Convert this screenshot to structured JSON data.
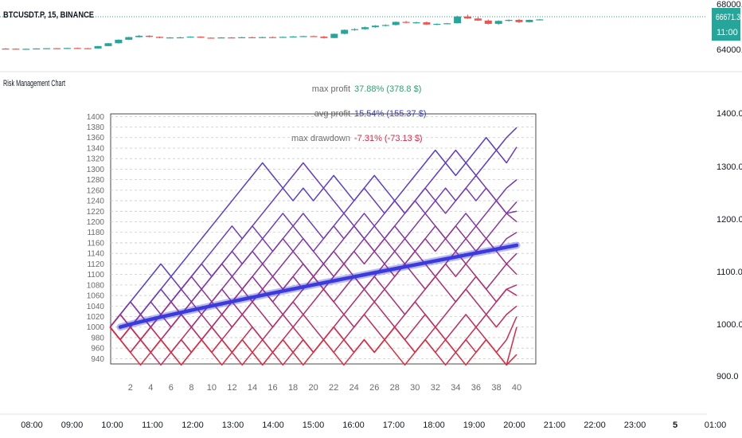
{
  "header": {
    "symbol": "BTCUSDT.P, 15, BINANCE"
  },
  "price_pane": {
    "scale_labels": [
      "68000.0",
      "64000.0"
    ],
    "current_price": "66671.3",
    "countdown": "11:00",
    "accent_up": "#26a69a",
    "accent_down": "#ef5350",
    "candles": [
      [
        64070,
        64110,
        64030,
        64060
      ],
      [
        64060,
        64090,
        64020,
        64040
      ],
      [
        64040,
        64070,
        64010,
        64050
      ],
      [
        64050,
        64090,
        64020,
        64080
      ],
      [
        64080,
        64110,
        64050,
        64100
      ],
      [
        64100,
        64120,
        64060,
        64080
      ],
      [
        64080,
        64140,
        64060,
        64120
      ],
      [
        64120,
        64160,
        64080,
        64100
      ],
      [
        64100,
        64130,
        64060,
        64080
      ],
      [
        64080,
        64310,
        64070,
        64290
      ],
      [
        64290,
        64560,
        64270,
        64540
      ],
      [
        64540,
        64880,
        64510,
        64850
      ],
      [
        64850,
        65110,
        64820,
        65080
      ],
      [
        65080,
        65260,
        65040,
        65200
      ],
      [
        65200,
        65240,
        65060,
        65100
      ],
      [
        65100,
        65130,
        64980,
        65010
      ],
      [
        65010,
        65080,
        64970,
        65050
      ],
      [
        65050,
        65110,
        65000,
        65060
      ],
      [
        65060,
        65150,
        65030,
        65120
      ],
      [
        65120,
        65160,
        65010,
        65030
      ],
      [
        65030,
        65060,
        64980,
        65010
      ],
      [
        65010,
        65080,
        64990,
        65050
      ],
      [
        65050,
        65090,
        64990,
        65030
      ],
      [
        65030,
        65100,
        65010,
        65070
      ],
      [
        65070,
        65110,
        65030,
        65050
      ],
      [
        65050,
        65110,
        65010,
        65080
      ],
      [
        65080,
        65140,
        65040,
        65060
      ],
      [
        65060,
        65130,
        65020,
        65100
      ],
      [
        65100,
        65170,
        65070,
        65140
      ],
      [
        65140,
        65200,
        65090,
        65170
      ],
      [
        65170,
        65220,
        65100,
        65120
      ],
      [
        65120,
        65190,
        64950,
        65000
      ],
      [
        65000,
        65400,
        64990,
        65370
      ],
      [
        65370,
        65760,
        65330,
        65720
      ],
      [
        65720,
        65860,
        65640,
        65780
      ],
      [
        65780,
        66010,
        65740,
        65950
      ],
      [
        65950,
        66140,
        65900,
        66090
      ],
      [
        66090,
        66200,
        66020,
        66150
      ],
      [
        66150,
        66460,
        66100,
        66420
      ],
      [
        66420,
        66510,
        66300,
        66350
      ],
      [
        66350,
        66440,
        66270,
        66380
      ],
      [
        66380,
        66460,
        66160,
        66190
      ],
      [
        66190,
        66290,
        66130,
        66250
      ],
      [
        66250,
        66330,
        66210,
        66300
      ],
      [
        66300,
        66960,
        66280,
        66900
      ],
      [
        66900,
        67060,
        66690,
        66720
      ],
      [
        66720,
        66870,
        66510,
        66540
      ],
      [
        66540,
        66630,
        66200,
        66250
      ],
      [
        66250,
        66560,
        66160,
        66510
      ],
      [
        66510,
        66640,
        66450,
        66600
      ],
      [
        66600,
        66680,
        66320,
        66400
      ],
      [
        66400,
        66620,
        66360,
        66600
      ],
      [
        66600,
        66680,
        66560,
        66640
      ]
    ]
  },
  "indicator": {
    "title": "Risk Management Chart",
    "stats": [
      {
        "label": "max profit",
        "value": "37.88% (378.8 $)",
        "color": "#2e9e6e"
      },
      {
        "label": "avg profit",
        "value": "15.54% (155.37 $)",
        "color": "#3b3bdc"
      },
      {
        "label": "max drawdown",
        "value": "-7.31% (-73.13 $)",
        "color": "#e0203e"
      }
    ],
    "right_scale_labels": [
      "1400.0",
      "1300.0",
      "1200.0",
      "1100.0",
      "1000.0",
      "900.0"
    ]
  },
  "chart_data": {
    "type": "line",
    "title": "",
    "xlabel": "",
    "ylabel": "",
    "x_ticks": [
      2,
      4,
      6,
      8,
      10,
      12,
      14,
      16,
      18,
      20,
      22,
      24,
      26,
      28,
      30,
      32,
      34,
      36,
      38,
      40
    ],
    "y_ticks": [
      940,
      960,
      980,
      1000,
      1020,
      1040,
      1060,
      1080,
      1100,
      1120,
      1140,
      1160,
      1180,
      1200,
      1220,
      1240,
      1260,
      1280,
      1300,
      1320,
      1340,
      1360,
      1380,
      1400
    ],
    "ylim": [
      930,
      1405
    ],
    "xlim": [
      0,
      42
    ],
    "grid": true,
    "start_value": 1000,
    "trades": 40,
    "avg_curve": {
      "x": [
        1,
        40
      ],
      "y": [
        1000,
        1155.37
      ],
      "color": "#3b3bdc"
    },
    "series": [
      {
        "values": [
          1000,
          1024,
          1048,
          1072,
          1096,
          1120,
          1096,
          1120,
          1144,
          1168,
          1192,
          1216,
          1240,
          1264,
          1288,
          1312,
          1288,
          1264,
          1240,
          1264,
          1240,
          1264,
          1288,
          1264,
          1240,
          1264,
          1288,
          1264,
          1240,
          1264,
          1288,
          1312,
          1336,
          1312,
          1288,
          1312,
          1336,
          1360,
          1336,
          1360,
          1379
        ]
      },
      {
        "values": [
          1000,
          1024,
          1048,
          1024,
          1048,
          1072,
          1096,
          1072,
          1096,
          1120,
          1144,
          1168,
          1192,
          1168,
          1192,
          1216,
          1240,
          1264,
          1288,
          1312,
          1288,
          1264,
          1240,
          1216,
          1240,
          1264,
          1240,
          1216,
          1240,
          1216,
          1240,
          1264,
          1288,
          1312,
          1336,
          1312,
          1288,
          1312,
          1336,
          1312,
          1342
        ]
      },
      {
        "values": [
          1000,
          1024,
          1000,
          1024,
          1048,
          1072,
          1048,
          1072,
          1096,
          1120,
          1096,
          1120,
          1144,
          1168,
          1192,
          1168,
          1192,
          1216,
          1192,
          1216,
          1192,
          1168,
          1192,
          1216,
          1192,
          1168,
          1192,
          1216,
          1240,
          1216,
          1240,
          1264,
          1240,
          1264,
          1240,
          1264,
          1288,
          1264,
          1240,
          1264,
          1280
        ]
      },
      {
        "values": [
          1000,
          976,
          1000,
          1024,
          1048,
          1024,
          1048,
          1072,
          1048,
          1072,
          1096,
          1120,
          1144,
          1120,
          1144,
          1168,
          1144,
          1168,
          1192,
          1168,
          1144,
          1168,
          1192,
          1168,
          1192,
          1216,
          1192,
          1168,
          1192,
          1216,
          1240,
          1216,
          1240,
          1216,
          1240,
          1264,
          1240,
          1264,
          1240,
          1216,
          1220
        ]
      },
      {
        "values": [
          1000,
          1024,
          1048,
          1024,
          1000,
          1024,
          1048,
          1072,
          1096,
          1072,
          1096,
          1120,
          1096,
          1120,
          1144,
          1120,
          1144,
          1168,
          1144,
          1168,
          1144,
          1120,
          1144,
          1168,
          1192,
          1168,
          1144,
          1168,
          1192,
          1168,
          1192,
          1216,
          1192,
          1168,
          1192,
          1216,
          1192,
          1216,
          1240,
          1216,
          1238
        ]
      },
      {
        "values": [
          1000,
          976,
          1000,
          1024,
          1000,
          1024,
          1048,
          1024,
          1048,
          1072,
          1048,
          1072,
          1096,
          1072,
          1096,
          1120,
          1096,
          1120,
          1144,
          1120,
          1096,
          1120,
          1144,
          1120,
          1144,
          1168,
          1144,
          1120,
          1144,
          1168,
          1144,
          1168,
          1192,
          1168,
          1144,
          1168,
          1192,
          1168,
          1192,
          1216,
          1200
        ]
      },
      {
        "values": [
          1000,
          1024,
          1000,
          976,
          1000,
          1024,
          1000,
          1024,
          1048,
          1024,
          1048,
          1072,
          1048,
          1072,
          1096,
          1072,
          1096,
          1072,
          1096,
          1120,
          1096,
          1120,
          1096,
          1120,
          1144,
          1120,
          1144,
          1168,
          1144,
          1120,
          1144,
          1168,
          1144,
          1168,
          1192,
          1168,
          1144,
          1168,
          1144,
          1168,
          1180
        ]
      },
      {
        "values": [
          1000,
          976,
          1000,
          976,
          1000,
          1024,
          1048,
          1024,
          1000,
          1024,
          1048,
          1024,
          1048,
          1072,
          1048,
          1072,
          1048,
          1072,
          1096,
          1072,
          1096,
          1072,
          1096,
          1120,
          1096,
          1072,
          1096,
          1120,
          1096,
          1120,
          1144,
          1120,
          1096,
          1120,
          1144,
          1120,
          1144,
          1168,
          1144,
          1120,
          1140
        ]
      },
      {
        "values": [
          1000,
          1024,
          1000,
          976,
          952,
          976,
          1000,
          1024,
          1000,
          1024,
          1000,
          1024,
          1048,
          1024,
          1048,
          1072,
          1048,
          1024,
          1048,
          1072,
          1096,
          1072,
          1048,
          1072,
          1096,
          1072,
          1096,
          1072,
          1096,
          1120,
          1096,
          1072,
          1096,
          1120,
          1096,
          1120,
          1096,
          1072,
          1096,
          1120,
          1100
        ]
      },
      {
        "values": [
          1000,
          976,
          952,
          976,
          1000,
          976,
          1000,
          1024,
          1000,
          976,
          1000,
          1024,
          1000,
          1024,
          1048,
          1024,
          1000,
          1024,
          1048,
          1024,
          1048,
          1072,
          1048,
          1024,
          1048,
          1072,
          1048,
          1072,
          1048,
          1024,
          1048,
          1072,
          1096,
          1072,
          1048,
          1072,
          1096,
          1072,
          1048,
          1072,
          1080
        ]
      },
      {
        "values": [
          1000,
          976,
          1000,
          976,
          952,
          976,
          952,
          976,
          1000,
          976,
          1000,
          976,
          1000,
          1024,
          1000,
          976,
          1000,
          1024,
          1000,
          1024,
          1000,
          976,
          1000,
          1024,
          1000,
          1024,
          1048,
          1024,
          1000,
          1024,
          1048,
          1024,
          1000,
          1024,
          1048,
          1072,
          1048,
          1024,
          1048,
          1072,
          1060
        ]
      },
      {
        "values": [
          1000,
          976,
          952,
          976,
          952,
          928,
          952,
          976,
          952,
          976,
          1000,
          976,
          952,
          976,
          1000,
          976,
          952,
          976,
          1000,
          976,
          952,
          976,
          1000,
          976,
          1000,
          1024,
          1000,
          976,
          1000,
          976,
          1000,
          1024,
          1000,
          976,
          1000,
          1024,
          1000,
          1024,
          1000,
          1024,
          1040
        ]
      },
      {
        "values": [
          1000,
          976,
          952,
          976,
          1000,
          976,
          952,
          976,
          952,
          976,
          952,
          976,
          952,
          976,
          952,
          928,
          952,
          976,
          952,
          976,
          952,
          976,
          952,
          976,
          952,
          976,
          952,
          976,
          1000,
          976,
          952,
          976,
          1000,
          976,
          952,
          976,
          1000,
          976,
          952,
          976,
          1020
        ]
      },
      {
        "values": [
          1000,
          976,
          1000,
          976,
          952,
          976,
          952,
          928,
          952,
          976,
          952,
          976,
          952,
          928,
          952,
          976,
          952,
          928,
          952,
          976,
          952,
          976,
          1000,
          976,
          952,
          976,
          952,
          976,
          1000,
          976,
          952,
          976,
          952,
          928,
          952,
          976,
          952,
          976,
          952,
          928,
          1000
        ]
      },
      {
        "values": [
          1000,
          976,
          952,
          928,
          952,
          976,
          952,
          928,
          952,
          976,
          952,
          928,
          952,
          976,
          952,
          928,
          952,
          976,
          952,
          928,
          952,
          976,
          952,
          928,
          952,
          976,
          952,
          976,
          952,
          928,
          952,
          976,
          952,
          976,
          952,
          928,
          952,
          976,
          952,
          928,
          948
        ]
      }
    ]
  },
  "time_axis": {
    "labels": [
      "08:00",
      "09:00",
      "10:00",
      "11:00",
      "12:00",
      "13:00",
      "14:00",
      "15:00",
      "16:00",
      "17:00",
      "18:00",
      "19:00",
      "20:00",
      "21:00",
      "22:00",
      "23:00",
      "5",
      "01:00"
    ]
  }
}
